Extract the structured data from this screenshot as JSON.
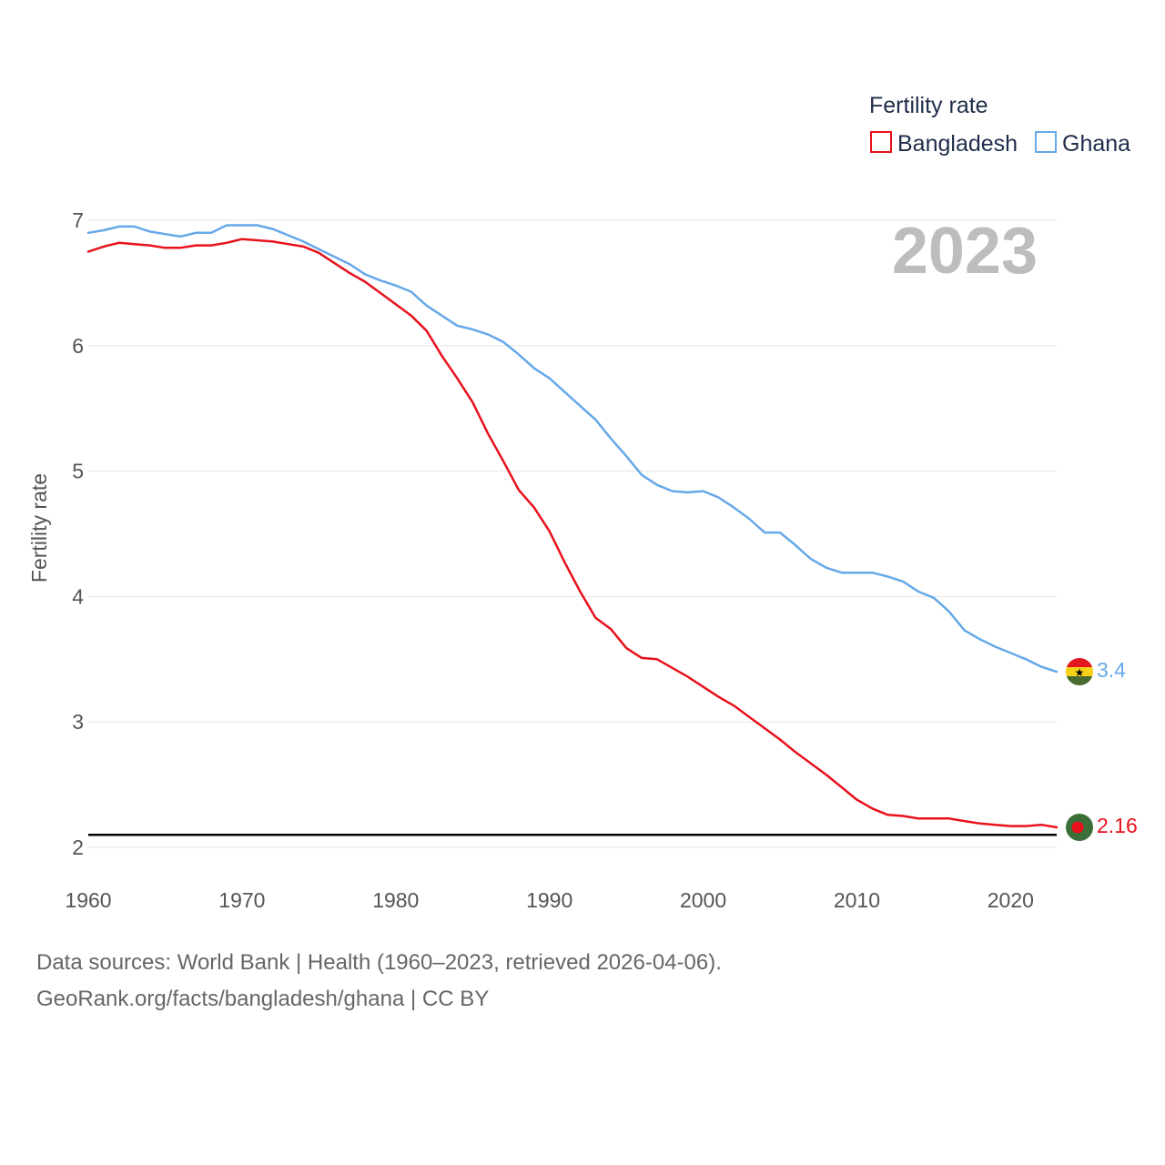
{
  "chart_data": {
    "type": "line",
    "title": "Fertility rate",
    "xlabel": "",
    "ylabel": "Fertility rate",
    "xlim": [
      1960,
      2023
    ],
    "ylim": [
      2,
      7
    ],
    "x_ticks": [
      1960,
      1970,
      1980,
      1990,
      2000,
      2010,
      2020
    ],
    "y_ticks": [
      2,
      3,
      4,
      5,
      6,
      7
    ],
    "current_year": "2023",
    "reference_line": 2.1,
    "legend": {
      "title": "Fertility rate",
      "position": "top-right"
    },
    "x": [
      1960,
      1961,
      1962,
      1963,
      1964,
      1965,
      1966,
      1967,
      1968,
      1969,
      1970,
      1971,
      1972,
      1973,
      1974,
      1975,
      1976,
      1977,
      1978,
      1979,
      1980,
      1981,
      1982,
      1983,
      1984,
      1985,
      1986,
      1987,
      1988,
      1989,
      1990,
      1991,
      1992,
      1993,
      1994,
      1995,
      1996,
      1997,
      1998,
      1999,
      2000,
      2001,
      2002,
      2003,
      2004,
      2005,
      2006,
      2007,
      2008,
      2009,
      2010,
      2011,
      2012,
      2013,
      2014,
      2015,
      2016,
      2017,
      2018,
      2019,
      2020,
      2021,
      2022,
      2023
    ],
    "series": [
      {
        "name": "Bangladesh",
        "color": "#e8111c",
        "end_label": "2.16",
        "flag": "bangladesh-flag",
        "values": [
          6.75,
          6.79,
          6.82,
          6.81,
          6.8,
          6.78,
          6.78,
          6.8,
          6.8,
          6.82,
          6.85,
          6.84,
          6.83,
          6.81,
          6.79,
          6.74,
          6.66,
          6.58,
          6.51,
          6.42,
          6.33,
          6.24,
          6.12,
          5.92,
          5.74,
          5.55,
          5.3,
          5.08,
          4.85,
          4.71,
          4.52,
          4.27,
          4.04,
          3.83,
          3.74,
          3.59,
          3.51,
          3.5,
          3.43,
          3.36,
          3.28,
          3.2,
          3.13,
          3.04,
          2.95,
          2.86,
          2.76,
          2.67,
          2.58,
          2.48,
          2.38,
          2.31,
          2.26,
          2.25,
          2.23,
          2.23,
          2.23,
          2.21,
          2.19,
          2.18,
          2.17,
          2.17,
          2.18,
          2.16
        ]
      },
      {
        "name": "Ghana",
        "color": "#66a8e8",
        "end_label": "3.4",
        "flag": "ghana-flag",
        "values": [
          6.9,
          6.92,
          6.95,
          6.95,
          6.91,
          6.89,
          6.87,
          6.9,
          6.9,
          6.96,
          6.96,
          6.96,
          6.93,
          6.88,
          6.83,
          6.77,
          6.71,
          6.65,
          6.57,
          6.52,
          6.48,
          6.43,
          6.32,
          6.24,
          6.16,
          6.13,
          6.09,
          6.03,
          5.93,
          5.82,
          5.74,
          5.63,
          5.52,
          5.41,
          5.26,
          5.12,
          4.97,
          4.89,
          4.84,
          4.83,
          4.84,
          4.79,
          4.71,
          4.62,
          4.51,
          4.51,
          4.41,
          4.3,
          4.23,
          4.19,
          4.19,
          4.19,
          4.16,
          4.12,
          4.04,
          3.99,
          3.88,
          3.73,
          3.66,
          3.6,
          3.55,
          3.5,
          3.44,
          3.4
        ]
      }
    ]
  },
  "footer": {
    "line1": "Data sources: World Bank | Health (1960–2023, retrieved 2026-04-06).",
    "line2": "GeoRank.org/facts/bangladesh/ghana | CC BY"
  }
}
